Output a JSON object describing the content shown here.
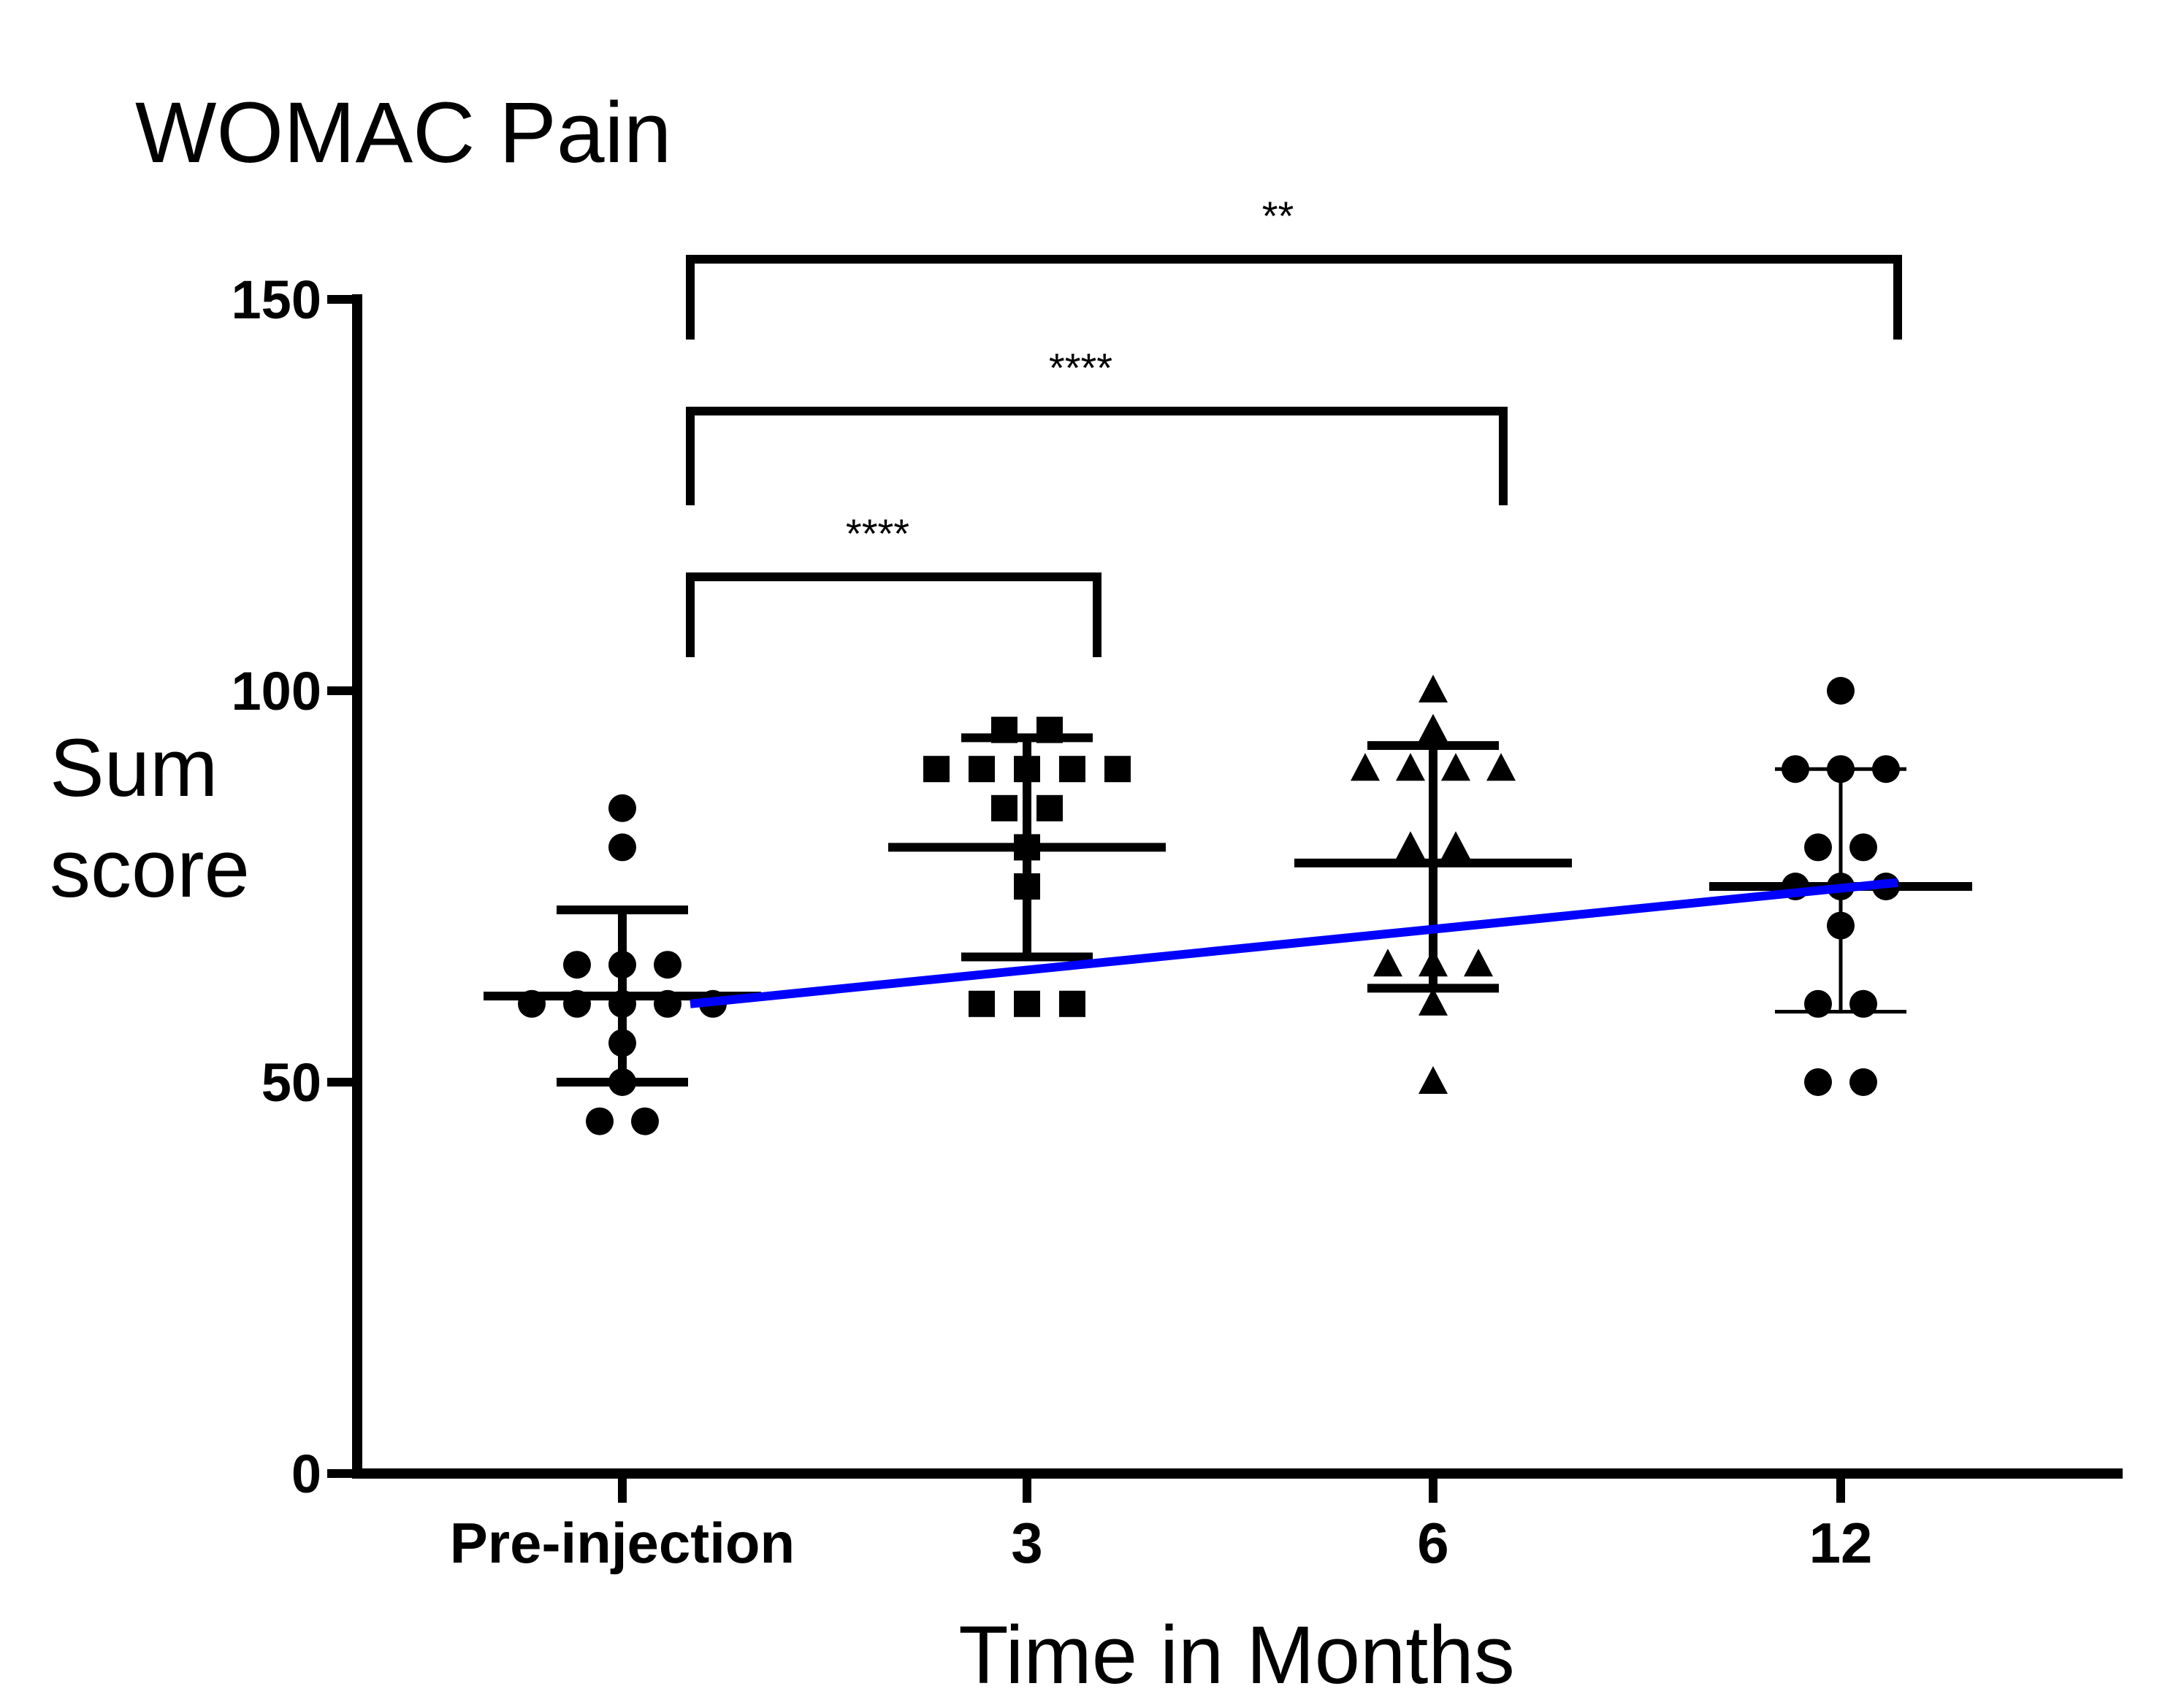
{
  "chart_data": {
    "type": "scatter",
    "title": "WOMAC Pain",
    "xlabel": "Time in Months",
    "ylabel": [
      "Sum",
      "score"
    ],
    "categories": [
      "Pre-injection",
      "3",
      "6",
      "12"
    ],
    "ylim": [
      0,
      150
    ],
    "yticks": [
      0,
      50,
      100,
      150
    ],
    "ytick_labels": [
      "0",
      "50",
      "100",
      "150"
    ],
    "grid": false,
    "series": [
      {
        "category": "Pre-injection",
        "marker": "circle",
        "values": [
          85,
          80,
          65,
          65,
          65,
          60,
          60,
          60,
          60,
          60,
          55,
          50,
          45,
          45
        ],
        "mean": 61,
        "sd_low": 50,
        "sd_high": 72
      },
      {
        "category": "3",
        "marker": "square",
        "values": [
          95,
          95,
          90,
          90,
          90,
          90,
          90,
          85,
          85,
          80,
          75,
          60,
          60,
          60
        ],
        "mean": 80,
        "sd_low": 66,
        "sd_high": 94
      },
      {
        "category": "6",
        "marker": "triangle",
        "values": [
          100,
          95,
          90,
          90,
          90,
          90,
          80,
          80,
          65,
          65,
          65,
          60,
          50
        ],
        "mean": 78,
        "sd_low": 62,
        "sd_high": 93
      },
      {
        "category": "12",
        "marker": "circle",
        "values": [
          100,
          90,
          90,
          90,
          80,
          80,
          75,
          75,
          75,
          70,
          60,
          60,
          50,
          50
        ],
        "mean": 75,
        "sd_low": 59,
        "sd_high": 90
      }
    ],
    "trend_line": {
      "color": "#0000ff",
      "start_value": 60,
      "end_value": 75.5
    },
    "significance": [
      {
        "from": "Pre-injection",
        "to": "3",
        "label": "****"
      },
      {
        "from": "Pre-injection",
        "to": "6",
        "label": "****"
      },
      {
        "from": "Pre-injection",
        "to": "12",
        "label": "**"
      }
    ],
    "colors": {
      "points": "#000000",
      "trend": "#0000ff"
    }
  }
}
